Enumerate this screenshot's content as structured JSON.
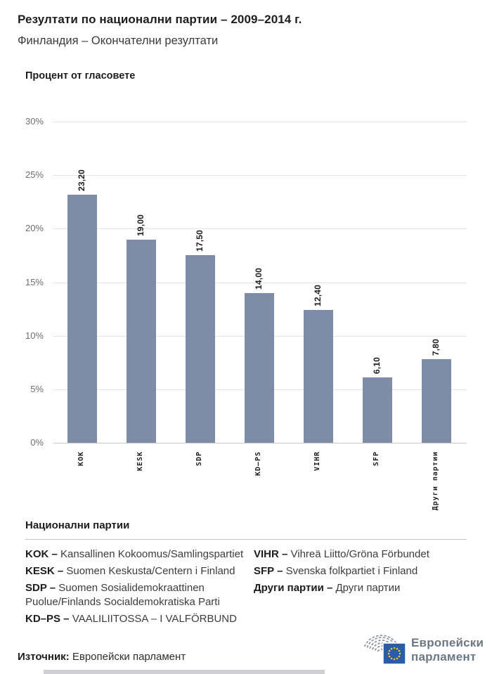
{
  "header": {
    "title": "Резултати по национални партии – 2009–2014 г.",
    "subtitle": "Финландия – Окончателни резултати"
  },
  "chart_data": {
    "type": "bar",
    "title": "Процент от гласовете",
    "categories": [
      "KOK",
      "KESK",
      "SDP",
      "KD–PS",
      "VIHR",
      "SFP",
      "Други партии"
    ],
    "values": [
      23.2,
      19.0,
      17.5,
      14.0,
      12.4,
      6.1,
      7.8
    ],
    "value_labels": [
      "23,20",
      "19,00",
      "17,50",
      "14,00",
      "12,40",
      "6,10",
      "7,80"
    ],
    "xlabel": "",
    "ylabel": "Процент от гласовете",
    "ylim": [
      0,
      30
    ],
    "ytick_step": 5,
    "ytick_labels": [
      "0%",
      "5%",
      "10%",
      "15%",
      "20%",
      "25%",
      "30%"
    ],
    "grid": true,
    "legend_position": "none",
    "bar_color": "#7f8ca8",
    "value_label_rotation": -90,
    "category_label_rotation": -90
  },
  "legend": {
    "heading": "Национални партии",
    "items_left": [
      {
        "abbr": "KOK –",
        "name": "Kansallinen Kokoomus/Samlingspartiet"
      },
      {
        "abbr": "KESK –",
        "name": "Suomen Keskusta/Centern i Finland"
      },
      {
        "abbr": "SDP –",
        "name": "Suomen Sosialidemokraattinen Puolue/Finlands Socialdemokratiska Parti"
      },
      {
        "abbr": "KD–PS –",
        "name": "VAALILIITOSSA – I VALFÖRBUND"
      }
    ],
    "items_right": [
      {
        "abbr": "VIHR –",
        "name": "Vihreä Liitto/Gröna Förbundet"
      },
      {
        "abbr": "SFP –",
        "name": "Svenska folkpartiet i Finland"
      },
      {
        "abbr": "Други партии –",
        "name": "Други партии"
      }
    ]
  },
  "footer": {
    "source_label": "Източник:",
    "source_value": "Европейски парламент",
    "logo_line1": "Европейски",
    "logo_line2": "парламент"
  },
  "colors": {
    "bar": "#7f8ca8",
    "gridline": "#e4e4e4",
    "axis_line": "#c9c9c9",
    "ytick_text": "#6e6e6e",
    "text_dark": "#1d1d1b",
    "legend_text": "#3c3c3b",
    "logo_text": "#6b7985",
    "eu_flag_blue": "#2a5ca8",
    "eu_star_yellow": "#f2cf1b",
    "hemicycle_gray": "#8e959c"
  }
}
